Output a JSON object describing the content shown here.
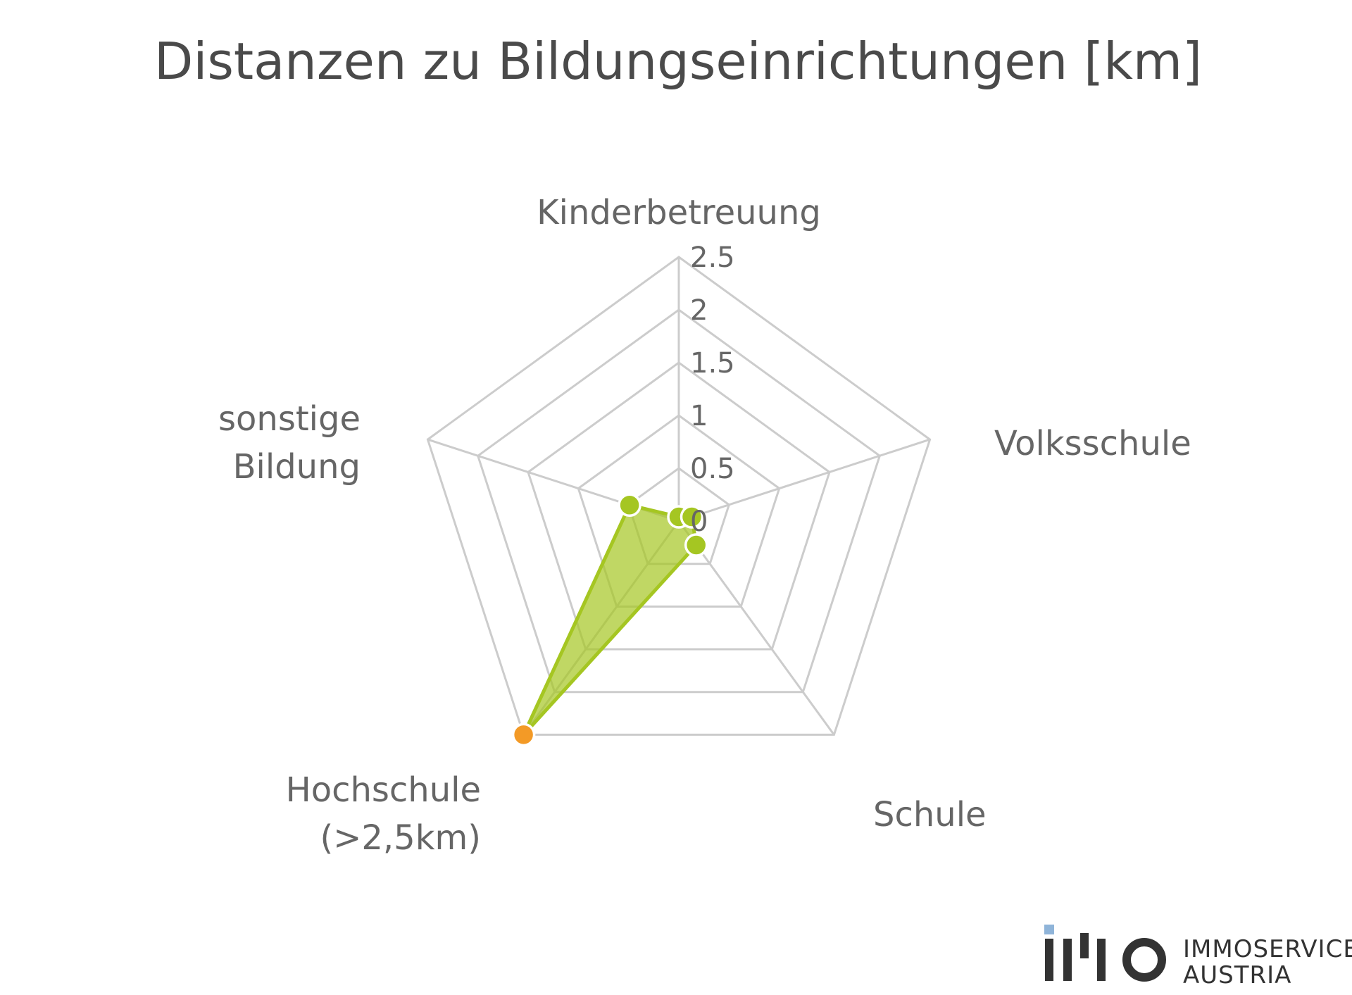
{
  "chart_data": {
    "type": "radar",
    "title": "Distanzen zu Bildungseinrichtungen [km]",
    "categories": [
      [
        "Kinderbetreuung"
      ],
      [
        "Volksschule"
      ],
      [
        "Schule"
      ],
      [
        "Hochschule",
        "(>2,5km)"
      ],
      [
        "sonstige",
        "Bildung"
      ]
    ],
    "ticks": [
      "0",
      "0.5",
      "1",
      "1.5",
      "2",
      "2.5"
    ],
    "tick_values": [
      0,
      0.5,
      1,
      1.5,
      2,
      2.5
    ],
    "rlim": [
      0,
      2.5
    ],
    "grid": true,
    "series": [
      {
        "values": [
          0.04,
          0.13,
          0.28,
          2.5,
          0.49
        ],
        "capped": [
          false,
          false,
          false,
          true,
          false
        ],
        "color": "#a5c622",
        "fill_color": "#a5c622",
        "capped_color": "#f39a26"
      }
    ],
    "grid_color": "#cccccc"
  },
  "logo": {
    "line1": "IMMOSERVICE",
    "line2": "AUSTRIA",
    "accent_color": "#8fb4d9",
    "mark_color": "#333333"
  }
}
